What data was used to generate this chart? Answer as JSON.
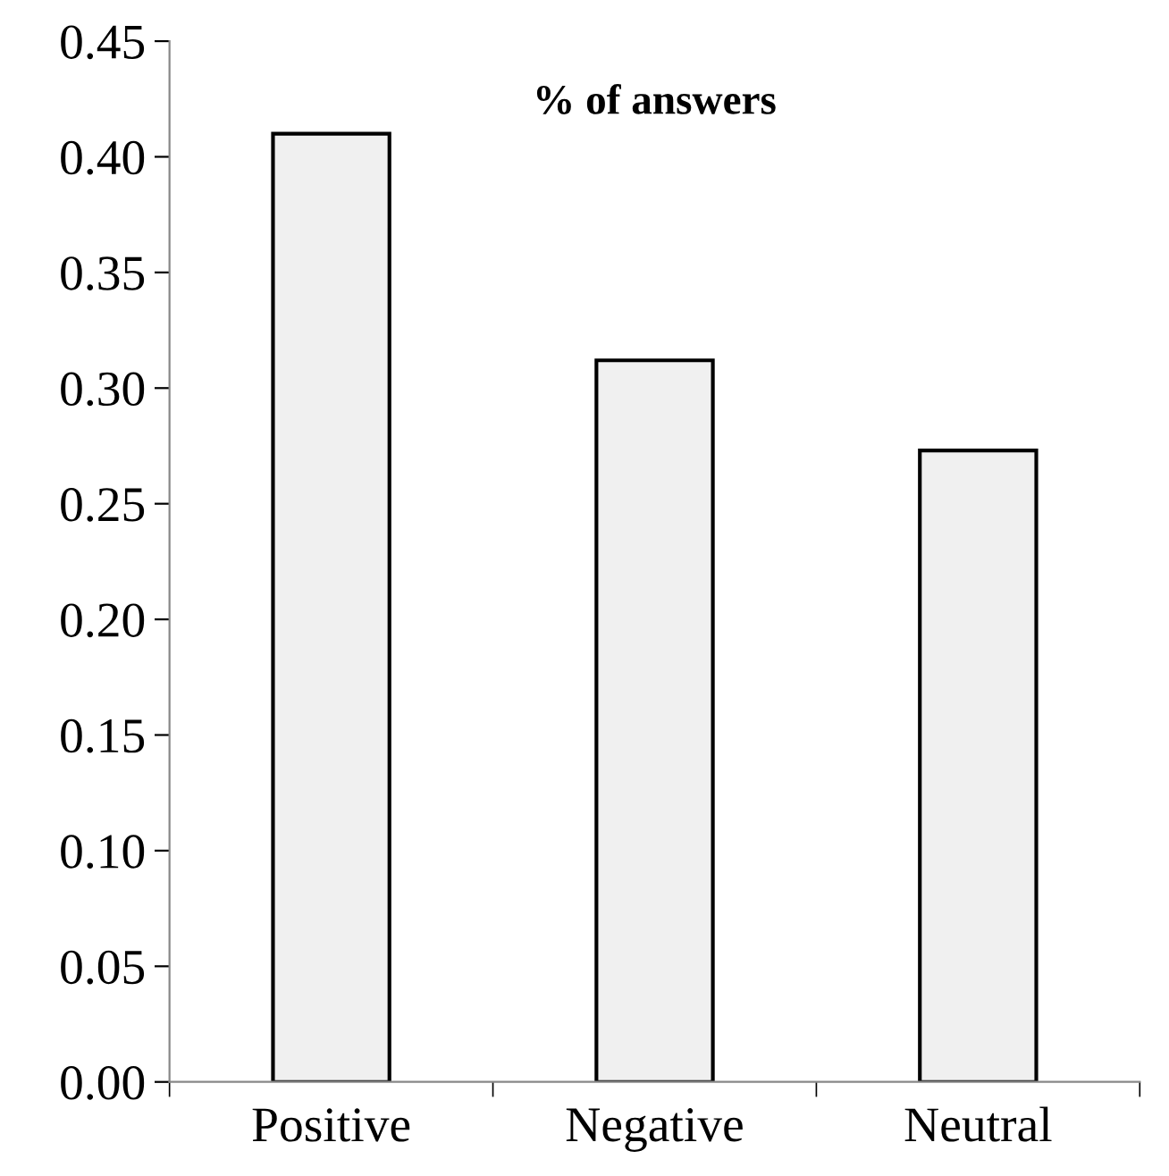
{
  "chart_data": {
    "type": "bar",
    "title": "% of answers",
    "categories": [
      "Positive",
      "Negative",
      "Neutral"
    ],
    "values": [
      0.41,
      0.312,
      0.273
    ],
    "color": "#f0f0f0",
    "ylim": [
      0,
      0.45
    ],
    "yticks": [
      {
        "value": 0,
        "label": "0.00"
      },
      {
        "value": 0.05,
        "label": "0.05"
      },
      {
        "value": 0.1,
        "label": "0.10"
      },
      {
        "value": 0.15,
        "label": "0.15"
      },
      {
        "value": 0.2,
        "label": "0.20"
      },
      {
        "value": 0.25,
        "label": "0.25"
      },
      {
        "value": 0.3,
        "label": "0.30"
      },
      {
        "value": 0.35,
        "label": "0.35"
      },
      {
        "value": 0.4,
        "label": "0.40"
      },
      {
        "value": 0.45,
        "label": "0.45"
      }
    ],
    "grid": false,
    "legend": false
  }
}
